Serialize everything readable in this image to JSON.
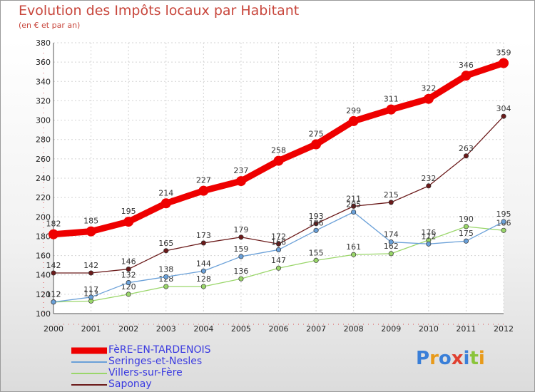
{
  "title": "Evolution des Impôts locaux par Habitant",
  "subtitle": "(en € et par an)",
  "logo": {
    "text": "Proxiti",
    "letter_colors": [
      "#3a7fd8",
      "#e89a1a",
      "#3a7fd8",
      "#e04030",
      "#3a7fd8",
      "#8ac43a",
      "#e89a1a"
    ]
  },
  "chart_data": {
    "type": "line",
    "x": [
      "2000",
      "2001",
      "2002",
      "2003",
      "2004",
      "2005",
      "2006",
      "2007",
      "2008",
      "2009",
      "2010",
      "2011",
      "2012"
    ],
    "ylim": [
      100,
      380
    ],
    "yticks": [
      100,
      120,
      140,
      160,
      180,
      200,
      220,
      240,
      260,
      280,
      300,
      320,
      340,
      360,
      380
    ],
    "grid": true,
    "legend_position": "bottom-left",
    "series": [
      {
        "name": "Saponay",
        "color": "#6b1a1a",
        "values": [
          142,
          142,
          146,
          165,
          173,
          179,
          172,
          193,
          211,
          215,
          232,
          263,
          304
        ]
      },
      {
        "name": "Villers-sur-Fère",
        "color": "#9ad66a",
        "values": [
          112,
          113,
          120,
          128,
          128,
          136,
          147,
          155,
          161,
          162,
          176,
          190,
          186
        ]
      },
      {
        "name": "Seringes-et-Nesles",
        "color": "#6aa0d8",
        "values": [
          112,
          117,
          132,
          138,
          144,
          159,
          166,
          186,
          205,
          174,
          172,
          175,
          195
        ]
      },
      {
        "name": "FèRE-EN-TARDENOIS",
        "color": "#ee0000",
        "values": [
          182,
          185,
          195,
          214,
          227,
          237,
          258,
          275,
          299,
          311,
          322,
          346,
          359
        ]
      }
    ],
    "legend_order": [
      3,
      2,
      1,
      0
    ]
  }
}
